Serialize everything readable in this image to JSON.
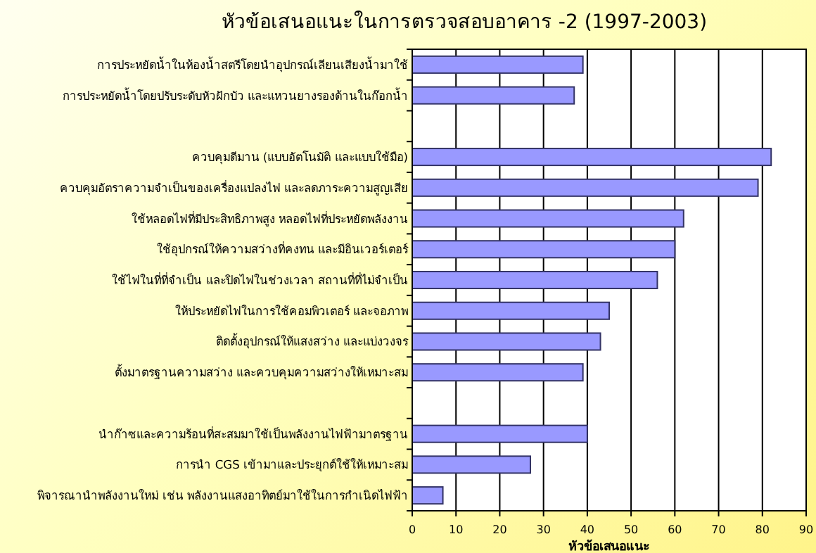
{
  "chart_data": {
    "type": "bar",
    "orientation": "horizontal",
    "title": "หัวข้อเสนอแนะในการตรวจสอบอาคาร -2  (1997-2003)",
    "xlabel": "หัวข้อเสนอแนะ",
    "categories": [
      "การประหยัดน้ำในห้องน้ำสตรีโดยนำอุปกรณ์เลียนเสียงน้ำมาใช้",
      "การประหยัดน้ำโดยปรับระดับหัวฝักบัว และแหวนยางรองด้านในก๊อกน้ำ",
      null,
      "ควบคุมดีมาน (แบบอัตโนมัติ และแบบใช้มือ)",
      "ควบคุมอัตราความจำเป็นของเครื่องแปลงไฟ และลดภาระความสูญเสีย",
      "ใช้หลอดไฟที่มีประสิทธิภาพสูง หลอดไฟที่ประหยัดพลังงาน",
      "ใช้อุปกรณ์ให้ความสว่างที่คงทน และมีอินเวอร์เตอร์",
      "ใช้ไฟในที่ที่จำเป็น และปิดไฟในช่วงเวลา สถานที่ที่ไม่จำเป็น",
      "ให้ประหยัดไฟในการใช้คอมพิวเตอร์ และจอภาพ",
      "ติดตั้งอุปกรณ์ให้แสงสว่าง และแบ่งวงจร",
      "ตั้งมาตรฐานความสว่าง และควบคุมความสว่างให้เหมาะสม",
      null,
      "นำก๊าซและความร้อนที่สะสมมาใช้เป็นพลังงานไฟฟ้ามาตรฐาน",
      "การนำ CGS เข้ามาและประยุกต์ใช้ให้เหมาะสม",
      "พิจารณานำพลังงานใหม่ เช่น พลังงานแสงอาทิตย์มาใช้ในการกำเนิดไฟฟ้า"
    ],
    "values": [
      39,
      37,
      null,
      82,
      79,
      62,
      60,
      56,
      45,
      43,
      39,
      null,
      40,
      27,
      7
    ],
    "color": "#9999ff",
    "xlim": [
      0,
      90
    ],
    "xticks": [
      0,
      10,
      20,
      30,
      40,
      50,
      60,
      70,
      80,
      90
    ],
    "grid": "x"
  }
}
